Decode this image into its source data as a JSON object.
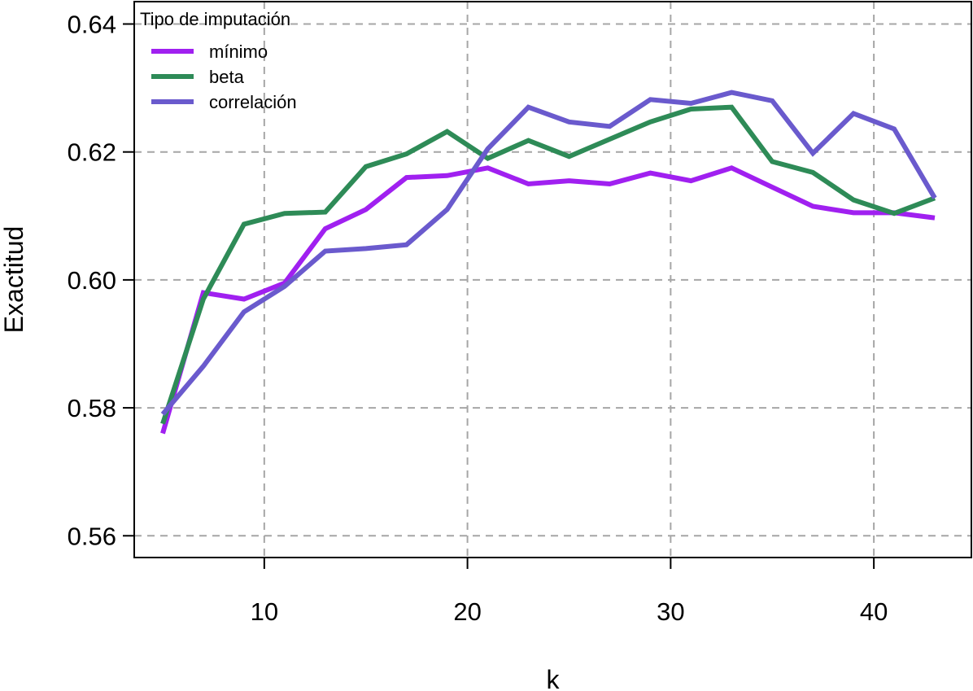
{
  "chart_data": {
    "type": "line",
    "title": "",
    "xlabel": "k",
    "ylabel": "Exactitud",
    "xlim": [
      3.6,
      44.8
    ],
    "ylim": [
      0.5566,
      0.6435
    ],
    "xticks": [
      10,
      20,
      30,
      40
    ],
    "xtick_labels": [
      "10",
      "20",
      "30",
      "40"
    ],
    "yticks": [
      0.56,
      0.58,
      0.6,
      0.62,
      0.64
    ],
    "ytick_labels": [
      "0.56",
      "0.58",
      "0.60",
      "0.62",
      "0.64"
    ],
    "grid": true,
    "legend": {
      "title": "Tipo de imputación",
      "position": "top-left"
    },
    "x": [
      5,
      7,
      9,
      11,
      13,
      15,
      17,
      19,
      21,
      23,
      25,
      27,
      29,
      31,
      33,
      35,
      37,
      39,
      41,
      43
    ],
    "series": [
      {
        "name": "mínimo",
        "color": "#a020f0",
        "values": [
          0.576,
          0.598,
          0.597,
          0.5995,
          0.608,
          0.611,
          0.616,
          0.6163,
          0.6175,
          0.615,
          0.6155,
          0.615,
          0.6167,
          0.6155,
          0.6175,
          0.6145,
          0.6115,
          0.6105,
          0.6105,
          0.6097
        ]
      },
      {
        "name": "beta",
        "color": "#2e8b57",
        "values": [
          0.5775,
          0.597,
          0.6087,
          0.6104,
          0.6106,
          0.6177,
          0.6197,
          0.6232,
          0.619,
          0.6218,
          0.6193,
          0.622,
          0.6247,
          0.6267,
          0.627,
          0.6185,
          0.6168,
          0.6125,
          0.6104,
          0.6128
        ]
      },
      {
        "name": "correlación",
        "color": "#6a5acd",
        "values": [
          0.579,
          0.5865,
          0.595,
          0.599,
          0.6045,
          0.6049,
          0.6055,
          0.611,
          0.6205,
          0.627,
          0.6247,
          0.624,
          0.6282,
          0.6276,
          0.6293,
          0.628,
          0.6198,
          0.626,
          0.6236,
          0.6128
        ]
      }
    ]
  }
}
